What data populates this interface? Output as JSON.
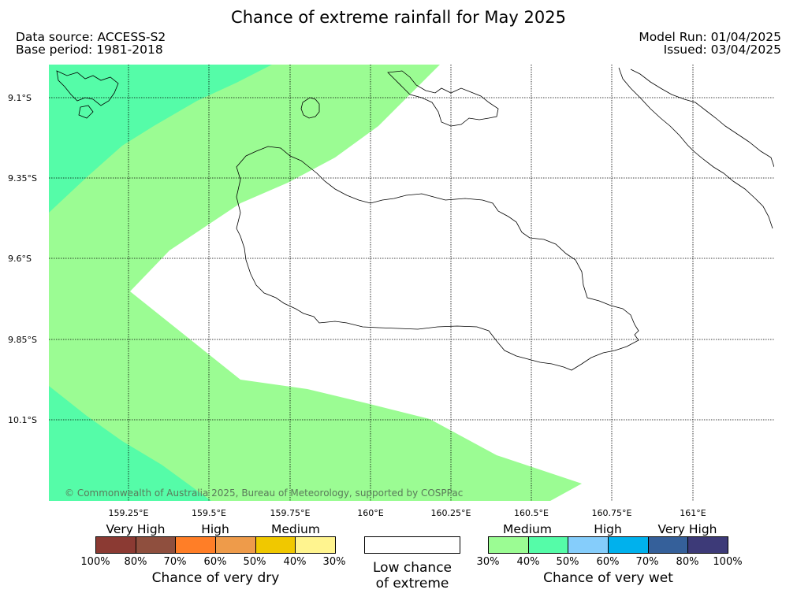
{
  "title": "Chance of extreme rainfall for May 2025",
  "header_left": {
    "source": "Data source: ACCESS-S2",
    "base": "Base period: 1981-2018"
  },
  "header_right": {
    "model_run": "Model Run: 01/04/2025",
    "issued": "Issued: 03/04/2025"
  },
  "latitude_labels": [
    "9.1°S",
    "9.35°S",
    "9.6°S",
    "9.85°S",
    "10.1°S"
  ],
  "longitude_labels": [
    "159.25°E",
    "159.5°E",
    "159.75°E",
    "160°E",
    "160.25°E",
    "160.5°E",
    "160.75°E",
    "161°E"
  ],
  "copyright": "© Commonwealth of Australia 2025, Bureau of Meteorology, supported by COSPPac",
  "colors": {
    "wet_medium": "#9bfc93",
    "wet_high": "#55fca8",
    "coast": "#000000"
  },
  "legend": {
    "dry": {
      "groups": [
        "Very High",
        "High",
        "Medium"
      ],
      "ticks": [
        "100%",
        "80%",
        "70%",
        "60%",
        "50%",
        "40%",
        "30%"
      ],
      "colors": [
        "#8b3a33",
        "#8f4f3e",
        "#ff7e27",
        "#ee9b4a",
        "#f0c800",
        "#fff48f"
      ],
      "caption": "Chance of very dry"
    },
    "low": {
      "caption_line1": "Low chance",
      "caption_line2": "of extreme"
    },
    "wet": {
      "groups": [
        "Medium",
        "High",
        "Very High"
      ],
      "ticks": [
        "30%",
        "40%",
        "50%",
        "60%",
        "70%",
        "80%",
        "100%"
      ],
      "colors": [
        "#9bfc93",
        "#55fca8",
        "#85cdfb",
        "#00b1ed",
        "#35609a",
        "#3d3a78"
      ],
      "caption": "Chance of very wet"
    }
  }
}
